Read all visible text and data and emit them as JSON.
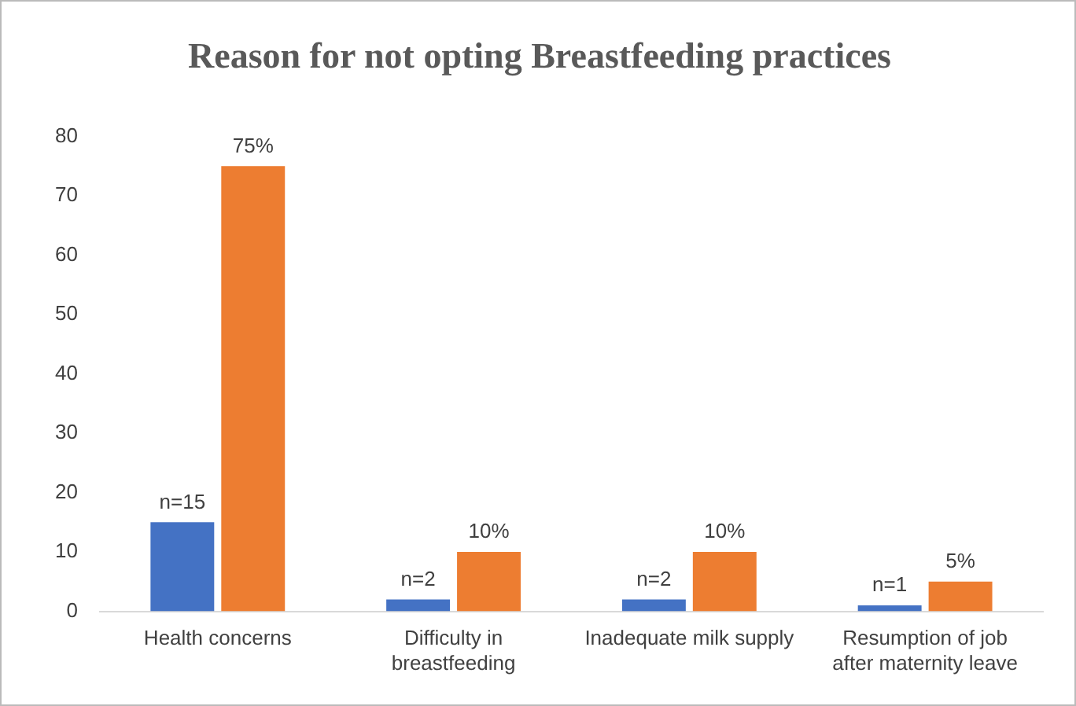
{
  "chart_data": {
    "type": "bar",
    "title": "Reason for not opting Breastfeeding practices",
    "categories": [
      "Health concerns",
      "Difficulty in breastfeeding",
      "Inadequate milk supply",
      "Resumption of job after maternity leave"
    ],
    "series": [
      {
        "color": "#4472c4",
        "values": [
          15,
          2,
          2,
          1
        ],
        "value_labels": [
          "n=15",
          "n=2",
          "n=2",
          "n=1"
        ]
      },
      {
        "color": "#ed7d31",
        "values": [
          75,
          10,
          10,
          5
        ],
        "value_labels": [
          "75%",
          "10%",
          "10%",
          "5%"
        ]
      }
    ],
    "ylim": [
      0,
      80
    ],
    "yticks": [
      0,
      10,
      20,
      30,
      40,
      50,
      60,
      70,
      80
    ],
    "grid": false,
    "legend": false
  }
}
